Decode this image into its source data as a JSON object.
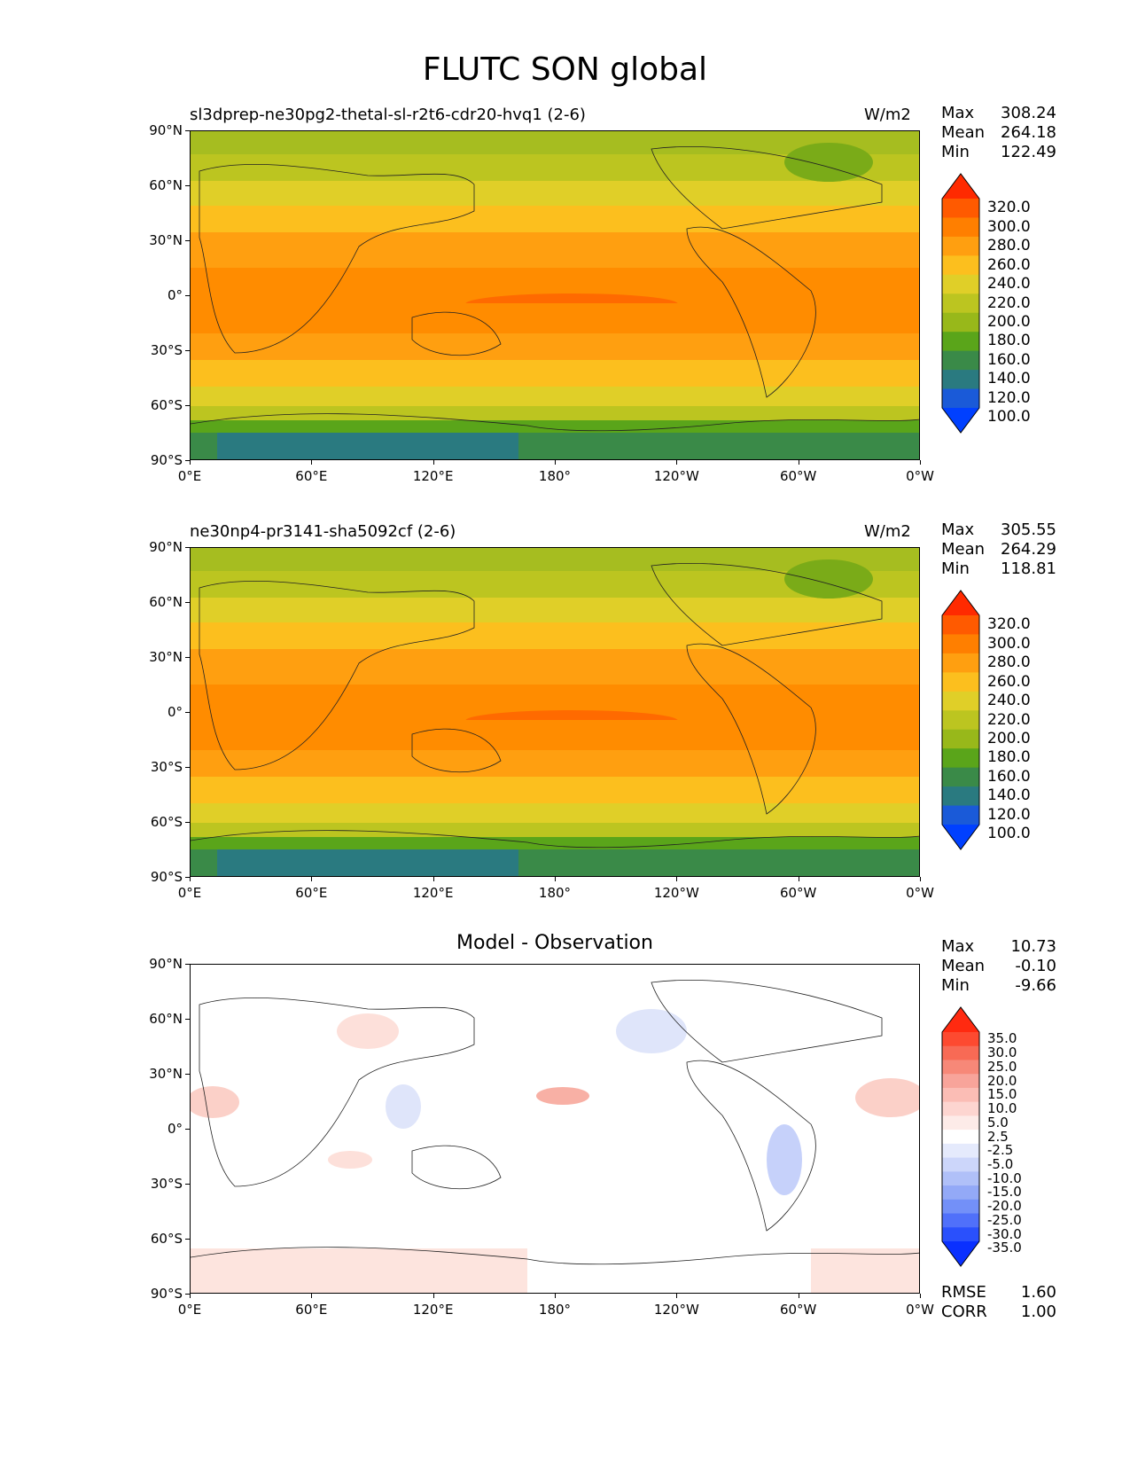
{
  "figure_title": "FLUTC SON global",
  "axes": {
    "lat_ticks": [
      "90°N",
      "60°N",
      "30°N",
      "0°",
      "30°S",
      "60°S",
      "90°S"
    ],
    "lon_ticks": [
      "0°E",
      "60°E",
      "120°E",
      "180°",
      "120°W",
      "60°W",
      "0°W"
    ]
  },
  "panels": [
    {
      "title": "sl3dprep-ne30pg2-thetal-sl-r2t6-cdr20-hvq1 (2-6)",
      "units": "W/m2",
      "stats": {
        "max_label": "Max",
        "max": "308.24",
        "mean_label": "Mean",
        "mean": "264.18",
        "min_label": "Min",
        "min": "122.49"
      },
      "colorbar": {
        "labels": [
          "320.0",
          "300.0",
          "280.0",
          "260.0",
          "240.0",
          "220.0",
          "200.0",
          "180.0",
          "160.0",
          "140.0",
          "120.0",
          "100.0"
        ],
        "colors": [
          "#ff2a00",
          "#ff5a00",
          "#ff7f00",
          "#ff9f10",
          "#fcbf1e",
          "#e0cf28",
          "#bcc520",
          "#98b81a",
          "#5aa51a",
          "#3a8a48",
          "#2a7a80",
          "#1a5ad8",
          "#0040ff"
        ]
      }
    },
    {
      "title": "ne30np4-pr3141-sha5092cf (2-6)",
      "units": "W/m2",
      "stats": {
        "max_label": "Max",
        "max": "305.55",
        "mean_label": "Mean",
        "mean": "264.29",
        "min_label": "Min",
        "min": "118.81"
      },
      "colorbar": {
        "labels": [
          "320.0",
          "300.0",
          "280.0",
          "260.0",
          "240.0",
          "220.0",
          "200.0",
          "180.0",
          "160.0",
          "140.0",
          "120.0",
          "100.0"
        ],
        "colors": [
          "#ff2a00",
          "#ff5a00",
          "#ff7f00",
          "#ff9f10",
          "#fcbf1e",
          "#e0cf28",
          "#bcc520",
          "#98b81a",
          "#5aa51a",
          "#3a8a48",
          "#2a7a80",
          "#1a5ad8",
          "#0040ff"
        ]
      }
    },
    {
      "title": "Model - Observation",
      "units": "",
      "stats": {
        "max_label": "Max",
        "max": "10.73",
        "mean_label": "Mean",
        "mean": "-0.10",
        "min_label": "Min",
        "min": "-9.66"
      },
      "colorbar": {
        "labels": [
          "35.0",
          "30.0",
          "25.0",
          "20.0",
          "15.0",
          "10.0",
          "5.0",
          "2.5",
          "-2.5",
          "-5.0",
          "-10.0",
          "-15.0",
          "-20.0",
          "-25.0",
          "-30.0",
          "-35.0"
        ],
        "colors": [
          "#ff2a10",
          "#fd4a30",
          "#f86a55",
          "#f78878",
          "#f8a49a",
          "#fbbdb5",
          "#fdd5d0",
          "#fdebe8",
          "#ffffff",
          "#e5eafc",
          "#ccd6fa",
          "#b0c0f8",
          "#93a9f7",
          "#7390f8",
          "#5070fa",
          "#2a50fc",
          "#0a30ff"
        ]
      },
      "rmse_label": "RMSE",
      "rmse": "1.60",
      "corr_label": "CORR",
      "corr": "1.00"
    }
  ]
}
